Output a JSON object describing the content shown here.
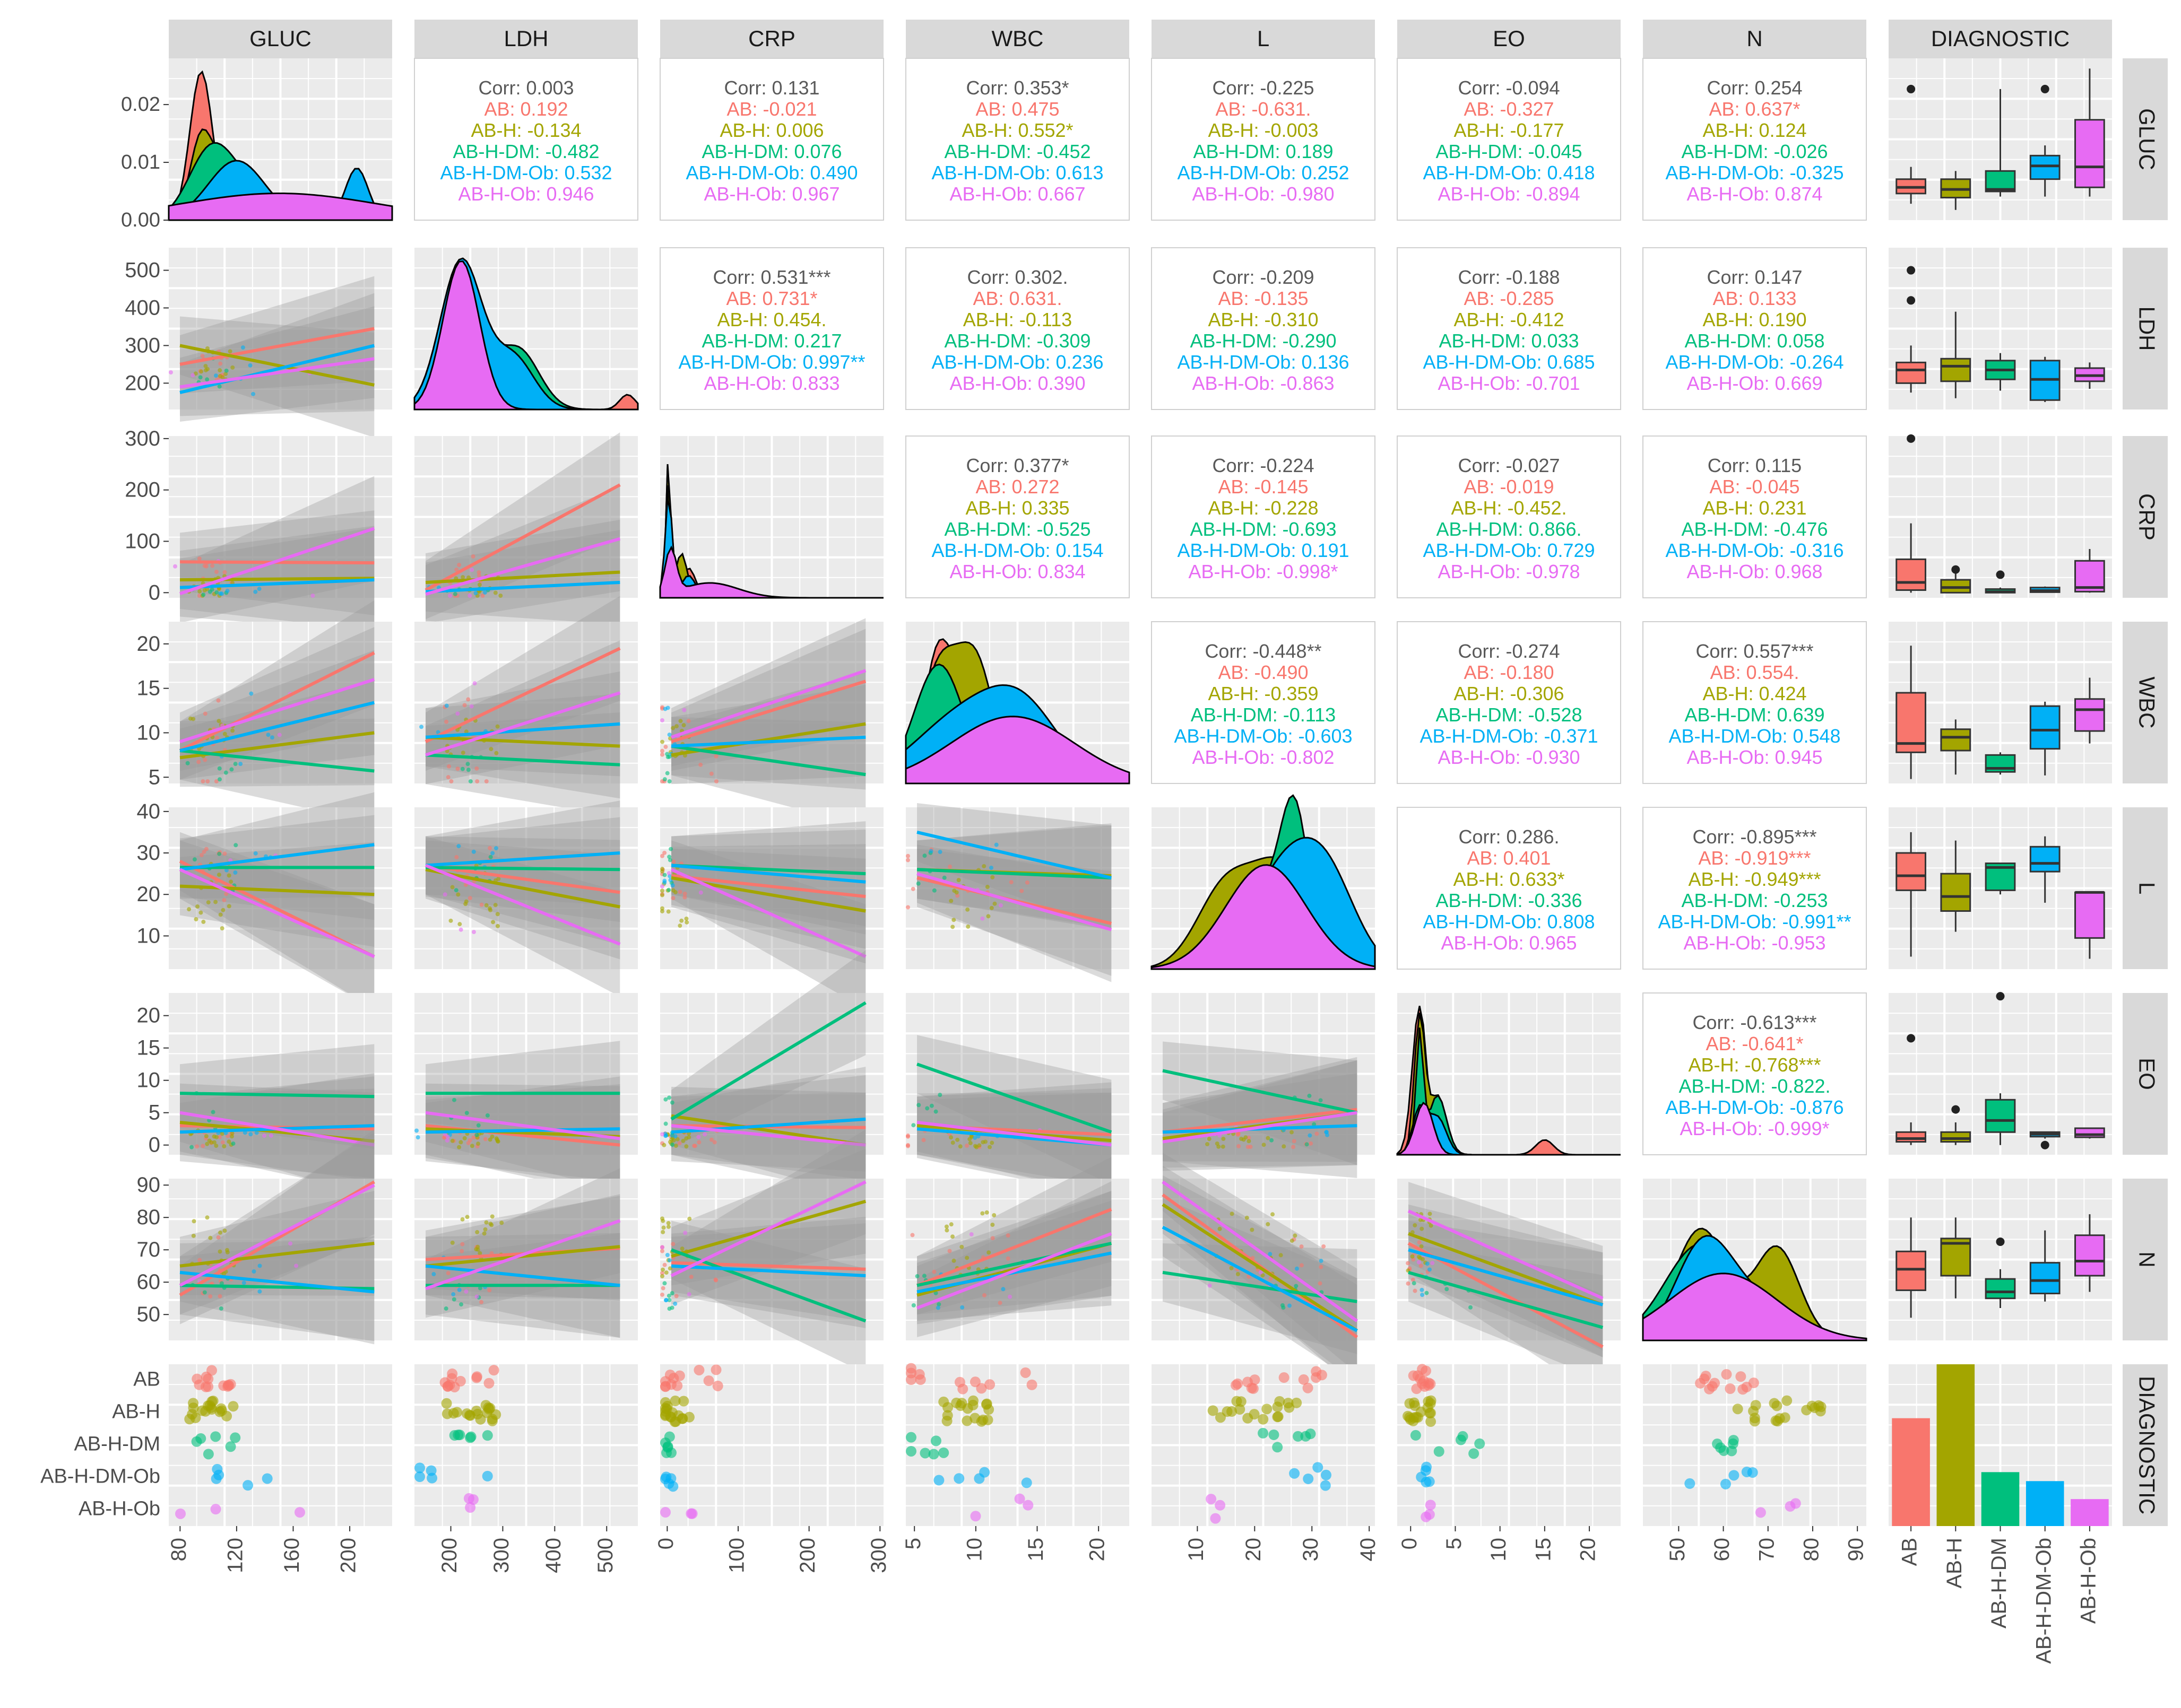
{
  "variables": [
    "GLUC",
    "LDH",
    "CRP",
    "WBC",
    "L",
    "EO",
    "N",
    "DIAGNOSTIC"
  ],
  "groups": [
    "AB",
    "AB-H",
    "AB-H-DM",
    "AB-H-DM-Ob",
    "AB-H-Ob"
  ],
  "colors": {
    "AB": "#F8766D",
    "AB-H": "#A3A500",
    "AB-H-DM": "#00BF7D",
    "AB-H-DM-Ob": "#00B0F6",
    "AB-H-Ob": "#E76BF3",
    "overall": "#595959",
    "panel_bg": "#EBEBEB",
    "strip_bg": "#D9D9D9",
    "ribbon": "#999999"
  },
  "axes": {
    "GLUC": {
      "range": [
        72,
        230
      ],
      "ticks": [
        80,
        120,
        160,
        200
      ],
      "tick_labels": [
        "80",
        "120",
        "160",
        "200"
      ]
    },
    "LDH": {
      "range": [
        130,
        560
      ],
      "ticks": [
        200,
        300,
        400,
        500
      ],
      "tick_labels": [
        "200",
        "300",
        "400",
        "500"
      ]
    },
    "CRP": {
      "range": [
        -10,
        305
      ],
      "ticks": [
        0,
        100,
        200,
        300
      ],
      "tick_labels": [
        "0",
        "100",
        "200",
        "300"
      ]
    },
    "WBC": {
      "range": [
        4.3,
        22.5
      ],
      "ticks": [
        5,
        10,
        15,
        20
      ],
      "tick_labels": [
        "5",
        "10",
        "15",
        "20"
      ]
    },
    "L": {
      "range": [
        2,
        41
      ],
      "ticks": [
        10,
        20,
        30,
        40
      ],
      "tick_labels": [
        "10",
        "20",
        "30",
        "40"
      ]
    },
    "EO": {
      "range": [
        -1.5,
        23.5
      ],
      "ticks": [
        0,
        5,
        10,
        15,
        20
      ],
      "tick_labels": [
        "0",
        "5",
        "10",
        "15",
        "20"
      ]
    },
    "N": {
      "range": [
        42,
        92
      ],
      "ticks": [
        50,
        60,
        70,
        80,
        90
      ],
      "tick_labels": [
        "50",
        "60",
        "70",
        "80",
        "90"
      ]
    }
  },
  "density_ylabels": {
    "ticks": [
      0,
      0.01,
      0.02
    ],
    "tick_labels": [
      "0.00",
      "0.01",
      "0.02"
    ]
  },
  "chart_data": {
    "type": "scatter",
    "title": "",
    "subtype": "ggpairs scatterplot matrix",
    "correlations": {
      "GLUC|LDH": [
        "0.003",
        "0.192",
        "-0.134",
        "-0.482",
        "0.532",
        "0.946"
      ],
      "GLUC|CRP": [
        "0.131",
        "-0.021",
        "0.006",
        "0.076",
        "0.490",
        "0.967"
      ],
      "GLUC|WBC": [
        "0.353*",
        "0.475",
        "0.552*",
        "-0.452",
        "0.613",
        "0.667"
      ],
      "GLUC|L": [
        "-0.225",
        "-0.631.",
        "-0.003",
        "0.189",
        "0.252",
        "-0.980"
      ],
      "GLUC|EO": [
        "-0.094",
        "-0.327",
        "-0.177",
        "-0.045",
        "0.418",
        "-0.894"
      ],
      "GLUC|N": [
        "0.254",
        "0.637*",
        "0.124",
        "-0.026",
        "-0.325",
        "0.874"
      ],
      "LDH|CRP": [
        "0.531***",
        "0.731*",
        "0.454.",
        "0.217",
        "0.997**",
        "0.833"
      ],
      "LDH|WBC": [
        "0.302.",
        "0.631.",
        "-0.113",
        "-0.309",
        "0.236",
        "0.390"
      ],
      "LDH|L": [
        "-0.209",
        "-0.135",
        "-0.310",
        "-0.290",
        "0.136",
        "-0.863"
      ],
      "LDH|EO": [
        "-0.188",
        "-0.285",
        "-0.412",
        "0.033",
        "0.685",
        "-0.701"
      ],
      "LDH|N": [
        "0.147",
        "0.133",
        "0.190",
        "0.058",
        "-0.264",
        "0.669"
      ],
      "CRP|WBC": [
        "0.377*",
        "0.272",
        "0.335",
        "-0.525",
        "0.154",
        "0.834"
      ],
      "CRP|L": [
        "-0.224",
        "-0.145",
        "-0.228",
        "-0.693",
        "0.191",
        "-0.998*"
      ],
      "CRP|EO": [
        "-0.027",
        "-0.019",
        "-0.452.",
        "0.866.",
        "0.729",
        "-0.978"
      ],
      "CRP|N": [
        "0.115",
        "-0.045",
        "0.231",
        "-0.476",
        "-0.316",
        "0.968"
      ],
      "WBC|L": [
        "-0.448**",
        "-0.490",
        "-0.359",
        "-0.113",
        "-0.603",
        "-0.802"
      ],
      "WBC|EO": [
        "-0.274",
        "-0.180",
        "-0.306",
        "-0.528",
        "-0.371",
        "-0.930"
      ],
      "WBC|N": [
        "0.557***",
        "0.554.",
        "0.424",
        "0.639",
        "0.548",
        "0.945"
      ],
      "L|EO": [
        "0.286.",
        "0.401",
        "0.633*",
        "-0.336",
        "0.808",
        "0.965"
      ],
      "L|N": [
        "-0.895***",
        "-0.919***",
        "-0.949***",
        "-0.253",
        "-0.991**",
        "-0.953"
      ],
      "EO|N": [
        "-0.613***",
        "-0.641*",
        "-0.768***",
        "-0.822.",
        "-0.876",
        "-0.999*"
      ]
    },
    "row_labels": [
      "Corr",
      "AB",
      "AB-H",
      "AB-H-DM",
      "AB-H-DM-Ob",
      "AB-H-Ob"
    ],
    "diagnostic_counts": {
      "AB": 12,
      "AB-H": 18,
      "AB-H-DM": 6,
      "AB-H-DM-Ob": 5,
      "AB-H-Ob": 3
    },
    "boxplots": {
      "GLUC": [
        [
          88,
          98,
          104,
          112,
          124,
          [
            200
          ]
        ],
        [
          82,
          94,
          102,
          112,
          120,
          []
        ],
        [
          95,
          100,
          102,
          120,
          200,
          []
        ],
        [
          95,
          112,
          125,
          135,
          145,
          [
            200
          ]
        ],
        [
          95,
          104,
          124,
          170,
          220,
          []
        ]
      ],
      "LDH": [
        [
          175,
          200,
          235,
          255,
          300,
          [
            500,
            420
          ]
        ],
        [
          160,
          205,
          245,
          265,
          390,
          []
        ],
        [
          180,
          210,
          235,
          260,
          280,
          []
        ],
        [
          150,
          155,
          210,
          260,
          270,
          []
        ],
        [
          185,
          205,
          220,
          240,
          255,
          []
        ]
      ],
      "CRP": [
        [
          0,
          5,
          20,
          65,
          135,
          [
            300
          ]
        ],
        [
          0,
          0,
          10,
          25,
          40,
          [
            45
          ]
        ],
        [
          0,
          0,
          2,
          7,
          10,
          [
            35
          ]
        ],
        [
          0,
          1,
          4,
          10,
          12,
          []
        ],
        [
          0,
          2,
          10,
          62,
          85,
          []
        ]
      ],
      "WBC": [
        [
          4.8,
          7.8,
          8.8,
          14.5,
          19.8,
          []
        ],
        [
          5.3,
          8.0,
          9.5,
          10.4,
          11.5,
          []
        ],
        [
          5.3,
          5.6,
          6.0,
          7.5,
          7.8,
          []
        ],
        [
          5.2,
          8.2,
          10.3,
          13.0,
          13.5,
          []
        ],
        [
          8.8,
          10.2,
          12.6,
          13.8,
          16.2,
          []
        ]
      ],
      "L": [
        [
          5,
          21,
          24.5,
          30,
          35,
          []
        ],
        [
          11,
          16,
          19.5,
          25,
          33,
          []
        ],
        [
          20,
          21,
          26.5,
          27.5,
          27.5,
          []
        ],
        [
          18,
          25.5,
          27.5,
          31.5,
          34,
          []
        ],
        [
          4.5,
          9.5,
          20.5,
          20.5,
          20.5,
          []
        ]
      ],
      "EO": [
        [
          0,
          0.5,
          1,
          2,
          3.5,
          [
            16.5
          ]
        ],
        [
          0,
          0.5,
          1,
          2,
          3.5,
          [
            5.5
          ]
        ],
        [
          0,
          2,
          3.8,
          7,
          8,
          [
            23
          ]
        ],
        [
          1,
          1.3,
          1.7,
          2,
          2,
          [
            0
          ]
        ],
        [
          1,
          1.2,
          1.6,
          2.6,
          2.6,
          []
        ]
      ],
      "N": [
        [
          49,
          57.5,
          64,
          69.5,
          80,
          []
        ],
        [
          55,
          62,
          72,
          73.5,
          80,
          []
        ],
        [
          52,
          55,
          57,
          61,
          64,
          [
            72.5
          ]
        ],
        [
          54,
          56.5,
          60.5,
          66,
          76,
          []
        ],
        [
          57,
          62,
          66.5,
          74.5,
          81,
          []
        ]
      ]
    },
    "trend_lines": {
      "GLUC|LDH": [
        [
          250,
          345
        ],
        [
          300,
          195
        ],
        null,
        [
          175,
          300
        ],
        [
          190,
          265
        ]
      ],
      "GLUC|CRP": [
        [
          60,
          58
        ],
        [
          25,
          28
        ],
        null,
        [
          10,
          25
        ],
        [
          -2,
          125
        ]
      ],
      "LDH|CRP": [
        [
          5,
          210
        ],
        [
          20,
          40
        ],
        null,
        [
          2,
          20
        ],
        [
          -3,
          105
        ]
      ],
      "GLUC|WBC": [
        [
          8,
          19
        ],
        [
          7.2,
          10
        ],
        [
          8,
          5.7
        ],
        [
          8,
          13.4
        ],
        [
          9,
          16
        ]
      ],
      "LDH|WBC": [
        [
          9,
          19.5
        ],
        [
          9.5,
          8.5
        ],
        [
          7.5,
          6.4
        ],
        [
          9.5,
          11
        ],
        [
          7.5,
          14.5
        ]
      ],
      "CRP|WBC": [
        [
          9,
          15.8
        ],
        [
          7.5,
          11
        ],
        [
          8.5,
          5.3
        ],
        [
          8.5,
          9.5
        ],
        [
          9.5,
          17
        ]
      ],
      "GLUC|L": [
        [
          28,
          5
        ],
        [
          22,
          20
        ],
        [
          26.5,
          26.5
        ],
        [
          26,
          32
        ],
        [
          26,
          5
        ]
      ],
      "LDH|L": [
        [
          27,
          20.5
        ],
        [
          26,
          17
        ],
        [
          26.5,
          26
        ],
        [
          27,
          30
        ],
        [
          27,
          8
        ]
      ],
      "CRP|L": [
        [
          24.5,
          19.5
        ],
        [
          24,
          16
        ],
        [
          27,
          25
        ],
        [
          27,
          23
        ],
        [
          26,
          5
        ]
      ],
      "WBC|L": [
        [
          24,
          13
        ],
        [
          26,
          24.5
        ],
        [
          26,
          24
        ],
        [
          35,
          24
        ],
        [
          25,
          11.5
        ]
      ],
      "GLUC|EO": [
        [
          3,
          2.5
        ],
        [
          3.5,
          0.6
        ],
        [
          8,
          7.5
        ],
        [
          2,
          3
        ],
        [
          5,
          0
        ]
      ],
      "LDH|EO": [
        [
          3,
          0
        ],
        [
          2.5,
          1.3
        ],
        [
          8,
          8
        ],
        [
          2,
          2.5
        ],
        [
          5,
          1
        ]
      ],
      "CRP|EO": [
        [
          3,
          2.7
        ],
        [
          4.5,
          0
        ],
        [
          4,
          22
        ],
        [
          2,
          4
        ],
        [
          3,
          0
        ]
      ],
      "WBC|EO": [
        [
          3,
          1.6
        ],
        [
          3,
          0.7
        ],
        [
          12.5,
          2
        ],
        [
          2.5,
          0
        ],
        [
          3.5,
          0
        ]
      ],
      "L|EO": [
        [
          2,
          5.5
        ],
        [
          1,
          5
        ],
        [
          11.5,
          5
        ],
        [
          2,
          3
        ],
        [
          0.5,
          5
        ]
      ],
      "GLUC|N": [
        [
          56,
          91
        ],
        [
          65,
          72
        ],
        [
          59,
          58
        ],
        [
          63,
          57
        ],
        [
          59,
          90
        ]
      ],
      "LDH|N": [
        [
          67,
          70.5
        ],
        [
          65,
          71
        ],
        [
          59,
          59
        ],
        [
          65,
          59
        ],
        [
          58,
          79
        ]
      ],
      "CRP|N": [
        [
          66,
          64
        ],
        [
          68,
          85
        ],
        [
          70,
          48
        ],
        [
          65,
          62
        ],
        [
          62,
          91
        ]
      ],
      "WBC|N": [
        [
          59,
          82.5
        ],
        [
          56,
          72
        ],
        [
          59,
          72
        ],
        [
          57,
          69
        ],
        [
          52,
          75
        ]
      ],
      "L|N": [
        [
          87,
          43
        ],
        [
          84,
          45
        ],
        [
          63,
          54
        ],
        [
          77,
          45
        ],
        [
          91,
          48
        ]
      ],
      "EO|N": [
        [
          72,
          40
        ],
        [
          75,
          53
        ],
        [
          63,
          46
        ],
        [
          70,
          53
        ],
        [
          82,
          55
        ]
      ]
    }
  }
}
